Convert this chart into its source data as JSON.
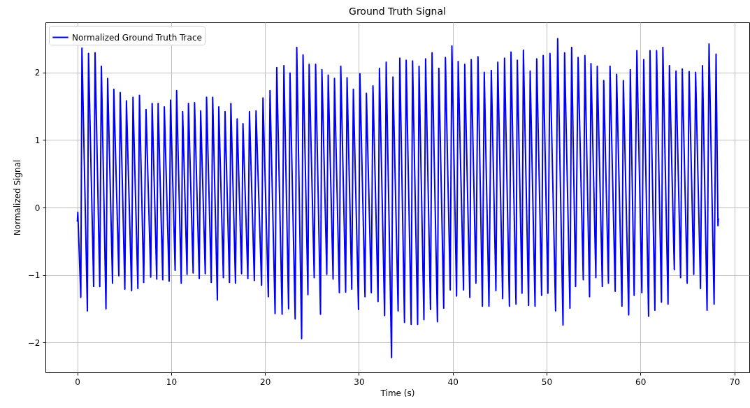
{
  "chart_data": {
    "type": "line",
    "title": "Ground Truth Signal",
    "xlabel": "Time (s)",
    "ylabel": "Normalized Signal",
    "x": [
      0,
      0.05,
      0.37,
      0.49,
      1.07,
      1.19,
      1.74,
      1.89,
      2.39,
      2.56,
      3.05,
      3.23,
      3.75,
      3.89,
      4.42,
      4.57,
      5.06,
      5.23,
      5.78,
      5.93,
      6.45,
      6.62,
      7.07,
      7.32,
      7.82,
      7.97,
      8.46,
      8.61,
      9.1,
      9.27,
      9.78,
      9.93,
      10.42,
      10.58,
      11.07,
      11.22,
      11.69,
      11.84,
      12.34,
      12.49,
      12.99,
      13.14,
      13.63,
      13.77,
      14.27,
      14.42,
      14.92,
      15.07,
      15.56,
      15.74,
      16.21,
      16.36,
      16.85,
      17.03,
      17.5,
      17.65,
      18.17,
      18.34,
      18.86,
      19.04,
      19.63,
      19.78,
      20.35,
      20.53,
      21.07,
      21.25,
      21.82,
      22.01,
      22.51,
      22.66,
      23.21,
      23.38,
      23.9,
      24.05,
      24.57,
      24.7,
      25.24,
      25.39,
      25.91,
      26.06,
      26.58,
      26.73,
      27.25,
      27.4,
      27.92,
      28.07,
      28.59,
      28.74,
      29.24,
      29.41,
      29.96,
      30.11,
      30.65,
      30.8,
      31.32,
      31.5,
      32.04,
      32.19,
      32.74,
      32.91,
      33.48,
      33.63,
      34.18,
      34.36,
      34.86,
      35.04,
      35.57,
      35.72,
      36.26,
      36.41,
      36.93,
      37.11,
      37.63,
      37.8,
      38.37,
      38.52,
      39.04,
      39.22,
      39.73,
      39.91,
      40.41,
      40.58,
      41.15,
      41.28,
      41.82,
      41.97,
      42.47,
      42.69,
      43.16,
      43.36,
      43.86,
      44.11,
      44.6,
      44.8,
      45.32,
      45.52,
      46.04,
      46.21,
      46.74,
      46.88,
      47.38,
      47.53,
      48.08,
      48.25,
      48.77,
      48.95,
      49.47,
      49.64,
      50.14,
      50.36,
      50.96,
      51.18,
      51.75,
      51.92,
      52.49,
      52.67,
      53.09,
      53.36,
      53.91,
      54.08,
      54.58,
      54.73,
      55.25,
      55.4,
      55.94,
      56.09,
      56.59,
      56.76,
      57.31,
      57.46,
      58.03,
      58.18,
      58.75,
      58.92,
      59.33,
      59.62,
      60.15,
      60.35,
      60.87,
      61.02,
      61.54,
      61.72,
      62.24,
      62.39,
      62.94,
      63.09,
      63.61,
      63.79,
      64.28,
      64.46,
      64.98,
      65.19,
      65.68,
      65.88,
      66.4,
      66.61,
      67.1,
      67.31,
      67.85,
      68.06,
      68.26,
      68.31
    ],
    "series": [
      {
        "name": "Normalized Ground Truth Trace",
        "color": "#0000ff",
        "values": [
          -0.21,
          -0.07,
          -1.33,
          2.36,
          -1.53,
          2.28,
          -1.17,
          2.29,
          -1.17,
          2.09,
          -1.5,
          1.91,
          -1.12,
          1.75,
          -1.01,
          1.7,
          -1.21,
          1.58,
          -1.23,
          1.63,
          -1.2,
          1.66,
          -1.11,
          1.45,
          -1.03,
          1.54,
          -1.06,
          1.54,
          -1.07,
          1.49,
          -1.09,
          1.59,
          -0.93,
          1.73,
          -1.12,
          1.42,
          -0.99,
          1.54,
          -0.97,
          1.55,
          -1.05,
          1.43,
          -0.98,
          1.63,
          -1.11,
          1.63,
          -1.37,
          1.49,
          -1.04,
          1.42,
          -1.11,
          1.54,
          -1.12,
          1.31,
          -0.98,
          1.24,
          -1.05,
          1.42,
          -1.08,
          1.43,
          -1.15,
          1.62,
          -1.32,
          1.73,
          -1.57,
          2.07,
          -1.58,
          2.1,
          -1.5,
          1.99,
          -1.65,
          2.37,
          -1.94,
          2.26,
          -1.29,
          2.12,
          -1.04,
          2.12,
          -1.58,
          2.04,
          -0.99,
          1.96,
          -1.06,
          1.91,
          -1.26,
          2.09,
          -1.25,
          1.92,
          -1.21,
          1.75,
          -1.51,
          1.98,
          -1.32,
          1.69,
          -1.26,
          1.8,
          -1.39,
          2.06,
          -1.6,
          2.15,
          -2.22,
          1.93,
          -1.53,
          2.21,
          -1.7,
          2.18,
          -1.73,
          2.17,
          -1.73,
          2.09,
          -1.66,
          2.2,
          -1.51,
          2.29,
          -1.69,
          2.06,
          -1.49,
          2.22,
          -1.22,
          2.39,
          -1.31,
          2.16,
          -1.22,
          2.12,
          -1.33,
          2.19,
          -1.12,
          2.23,
          -1.46,
          2,
          -1.46,
          2.03,
          -1.23,
          2.15,
          -1.35,
          2.21,
          -1.46,
          2.3,
          -1.43,
          2.18,
          -1.27,
          2.33,
          -1.45,
          2.02,
          -1.46,
          2.2,
          -1.3,
          2.25,
          -1.27,
          2.28,
          -1.53,
          2.5,
          -1.74,
          2.29,
          -1.49,
          2.37,
          -1.17,
          2.22,
          -1.07,
          2.25,
          -1.32,
          2.13,
          -1.04,
          2.09,
          -1.17,
          1.88,
          -1.12,
          2.09,
          -1.24,
          1.97,
          -1.46,
          1.88,
          -1.59,
          2.04,
          -1.3,
          2.32,
          -1.26,
          2.19,
          -1.61,
          2.32,
          -1.52,
          2.32,
          -1.4,
          2.37,
          -1.43,
          2.1,
          -0.92,
          2.02,
          -1.04,
          2.05,
          -1.12,
          2.01,
          -0.99,
          2,
          -1.2,
          2.1,
          -1.52,
          2.42,
          -1.43,
          2.27,
          -0.27,
          -0.16
        ]
      }
    ],
    "xlim": [
      -3.4,
      71.6
    ],
    "ylim": [
      -2.44,
      2.74
    ],
    "xticks": [
      0,
      10,
      20,
      30,
      40,
      50,
      60,
      70
    ],
    "yticks": [
      -2,
      -1,
      0,
      1,
      2
    ],
    "grid": true,
    "legend": "top left",
    "marker": "none",
    "line_style": "solid"
  }
}
